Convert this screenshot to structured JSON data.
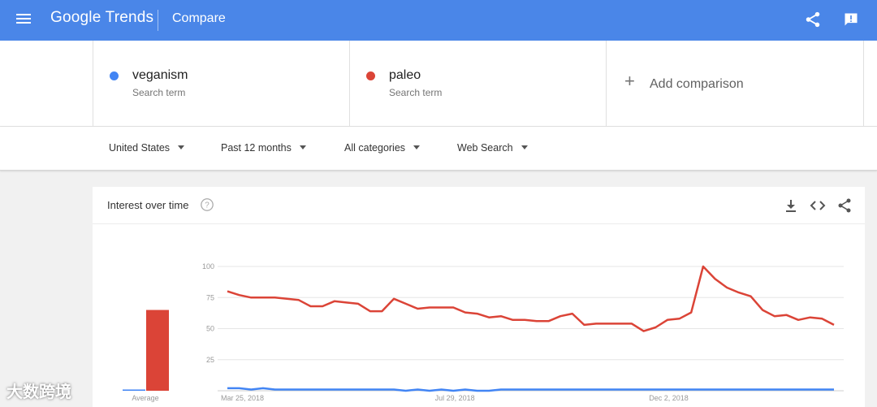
{
  "header": {
    "logo_text": "Google Trends",
    "page_name": "Compare",
    "bg_color": "#4a86e8",
    "icons": [
      "menu-icon",
      "share-icon",
      "feedback-icon"
    ]
  },
  "terms": [
    {
      "name": "veganism",
      "sub": "Search term",
      "color": "#4285f4"
    },
    {
      "name": "paleo",
      "sub": "Search term",
      "color": "#db4437"
    }
  ],
  "add_comparison": {
    "label": "Add comparison",
    "icon": "plus-icon"
  },
  "filters": {
    "region": "United States",
    "time": "Past 12 months",
    "category": "All categories",
    "search_type": "Web Search"
  },
  "card": {
    "title": "Interest over time",
    "icons": [
      "help-icon",
      "download-icon",
      "embed-icon",
      "share-icon"
    ]
  },
  "chart_data": {
    "type": "line",
    "ylim": [
      0,
      100
    ],
    "y_ticks": [
      "25",
      "50",
      "75",
      "100"
    ],
    "x_tick_labels": [
      "Mar 25, 2018",
      "Jul 29, 2018",
      "Dec 2, 2018"
    ],
    "grid": true,
    "average_bar": {
      "label": "Average",
      "values": [
        1,
        65
      ]
    },
    "series": [
      {
        "name": "paleo",
        "color": "#db4437",
        "values": [
          80,
          77,
          75,
          75,
          75,
          74,
          73,
          68,
          68,
          72,
          71,
          70,
          64,
          64,
          74,
          70,
          66,
          67,
          67,
          67,
          63,
          62,
          59,
          60,
          57,
          57,
          56,
          56,
          60,
          62,
          53,
          54,
          54,
          54,
          54,
          48,
          51,
          57,
          58,
          63,
          100,
          90,
          83,
          79,
          76,
          65,
          60,
          61,
          57,
          59,
          58,
          53
        ]
      },
      {
        "name": "veganism",
        "color": "#4285f4",
        "values": [
          2,
          2,
          1,
          2,
          1,
          1,
          1,
          1,
          1,
          1,
          1,
          1,
          1,
          1,
          1,
          0,
          1,
          0,
          1,
          0,
          1,
          0,
          0,
          1,
          1,
          1,
          1,
          1,
          1,
          1,
          1,
          1,
          1,
          1,
          1,
          1,
          1,
          1,
          1,
          1,
          1,
          1,
          1,
          1,
          1,
          1,
          1,
          1,
          1,
          1,
          1,
          1
        ]
      }
    ]
  },
  "watermark": "大数跨境"
}
